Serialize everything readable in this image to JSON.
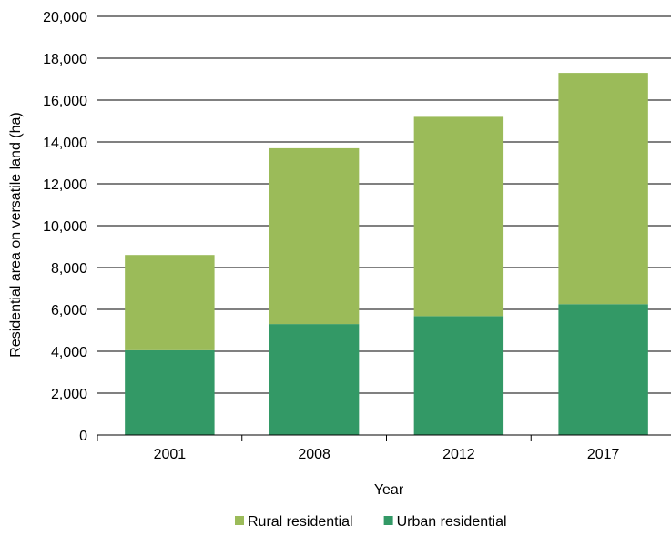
{
  "chart_data": {
    "type": "bar",
    "stacked": true,
    "title": "",
    "xlabel": "Year",
    "ylabel": "Residential area on versatile land (ha)",
    "categories": [
      "2001",
      "2008",
      "2012",
      "2017"
    ],
    "series": [
      {
        "name": "Urban residential",
        "color": "#339966",
        "values": [
          4050,
          5300,
          5680,
          6250
        ]
      },
      {
        "name": "Rural residential",
        "color": "#9bbb59",
        "values": [
          4550,
          8400,
          9520,
          11050
        ]
      }
    ],
    "ylim": [
      0,
      20000
    ],
    "yticks": [
      0,
      2000,
      4000,
      6000,
      8000,
      10000,
      12000,
      14000,
      16000,
      18000,
      20000
    ],
    "ytick_labels": [
      "0",
      "2,000",
      "4,000",
      "6,000",
      "8,000",
      "10,000",
      "12,000",
      "14,000",
      "16,000",
      "18,000",
      "20,000"
    ],
    "grid": true,
    "legend": {
      "position": "bottom",
      "order": [
        "Rural residential",
        "Urban residential"
      ]
    }
  }
}
